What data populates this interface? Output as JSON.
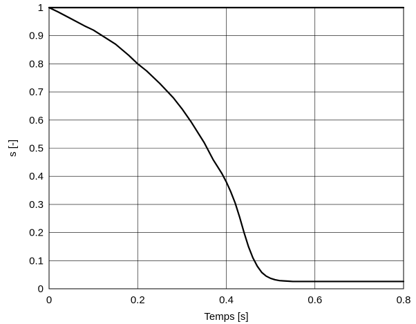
{
  "chart_data": {
    "type": "line",
    "title": "",
    "xlabel": "Temps [s]",
    "ylabel": "s [-]",
    "xlim": [
      0,
      0.8
    ],
    "ylim": [
      0,
      1
    ],
    "xticks": [
      0,
      0.2,
      0.4,
      0.6,
      0.8
    ],
    "xtick_labels": [
      "0",
      "0.2",
      "0.4",
      "0.6",
      "0.8"
    ],
    "yticks": [
      0,
      0.1,
      0.2,
      0.3,
      0.4,
      0.5,
      0.6,
      0.7,
      0.8,
      0.9,
      1
    ],
    "ytick_labels": [
      "0",
      "0.1",
      "0.2",
      "0.3",
      "0.4",
      "0.5",
      "0.6",
      "0.7",
      "0.8",
      "0.9",
      "1"
    ],
    "grid": true,
    "legend": false,
    "series": [
      {
        "color": "#000000",
        "x": [
          0,
          0.02,
          0.05,
          0.08,
          0.1,
          0.12,
          0.15,
          0.18,
          0.2,
          0.22,
          0.25,
          0.28,
          0.3,
          0.32,
          0.35,
          0.37,
          0.39,
          0.4,
          0.41,
          0.42,
          0.43,
          0.44,
          0.45,
          0.46,
          0.47,
          0.48,
          0.49,
          0.5,
          0.51,
          0.52,
          0.53,
          0.54,
          0.55,
          0.56,
          0.58,
          0.6,
          0.65,
          0.7,
          0.75,
          0.8
        ],
        "y": [
          1.0,
          0.985,
          0.96,
          0.935,
          0.92,
          0.9,
          0.87,
          0.83,
          0.8,
          0.775,
          0.73,
          0.68,
          0.64,
          0.595,
          0.52,
          0.46,
          0.41,
          0.38,
          0.345,
          0.305,
          0.255,
          0.2,
          0.15,
          0.11,
          0.08,
          0.058,
          0.045,
          0.037,
          0.032,
          0.029,
          0.028,
          0.027,
          0.026,
          0.026,
          0.026,
          0.026,
          0.026,
          0.026,
          0.026,
          0.026
        ]
      },
      {
        "color": "#000000",
        "x": [
          0,
          0.8
        ],
        "y": [
          1.0,
          1.0
        ]
      }
    ]
  }
}
